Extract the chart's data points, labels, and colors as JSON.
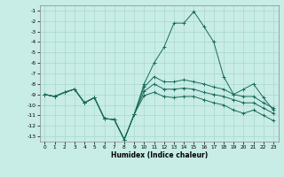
{
  "xlabel": "Humidex (Indice chaleur)",
  "bg_color": "#c8ece6",
  "grid_color": "#a8d8d0",
  "line_color": "#1a6b5a",
  "xlim": [
    -0.5,
    23.5
  ],
  "ylim": [
    -13.5,
    -0.5
  ],
  "yticks": [
    -1,
    -2,
    -3,
    -4,
    -5,
    -6,
    -7,
    -8,
    -9,
    -10,
    -11,
    -12,
    -13
  ],
  "xticks": [
    0,
    1,
    2,
    3,
    4,
    5,
    6,
    7,
    8,
    9,
    10,
    11,
    12,
    13,
    14,
    15,
    16,
    17,
    18,
    19,
    20,
    21,
    22,
    23
  ],
  "line1": [
    -9.0,
    -9.2,
    -8.8,
    -8.5,
    -9.8,
    -9.3,
    -11.3,
    -11.4,
    -13.3,
    -10.9,
    -8.0,
    -6.0,
    -4.5,
    -2.2,
    -2.2,
    -1.1,
    -2.5,
    -4.0,
    -7.3,
    -9.0,
    -8.5,
    -8.0,
    -9.3,
    -10.5
  ],
  "line2": [
    -9.0,
    -9.2,
    -8.8,
    -8.5,
    -9.8,
    -9.3,
    -11.3,
    -11.4,
    -13.3,
    -10.9,
    -8.3,
    -7.3,
    -7.8,
    -7.8,
    -7.6,
    -7.8,
    -8.0,
    -8.3,
    -8.5,
    -9.0,
    -9.2,
    -9.2,
    -9.8,
    -10.3
  ],
  "line3": [
    -9.0,
    -9.2,
    -8.8,
    -8.5,
    -9.8,
    -9.3,
    -11.3,
    -11.4,
    -13.3,
    -10.9,
    -8.7,
    -8.0,
    -8.5,
    -8.5,
    -8.4,
    -8.5,
    -8.8,
    -9.0,
    -9.2,
    -9.5,
    -9.8,
    -9.8,
    -10.3,
    -10.8
  ],
  "line4": [
    -9.0,
    -9.2,
    -8.8,
    -8.5,
    -9.8,
    -9.3,
    -11.3,
    -11.4,
    -13.3,
    -10.9,
    -9.1,
    -8.8,
    -9.2,
    -9.3,
    -9.2,
    -9.2,
    -9.5,
    -9.8,
    -10.0,
    -10.5,
    -10.8,
    -10.5,
    -11.0,
    -11.5
  ]
}
